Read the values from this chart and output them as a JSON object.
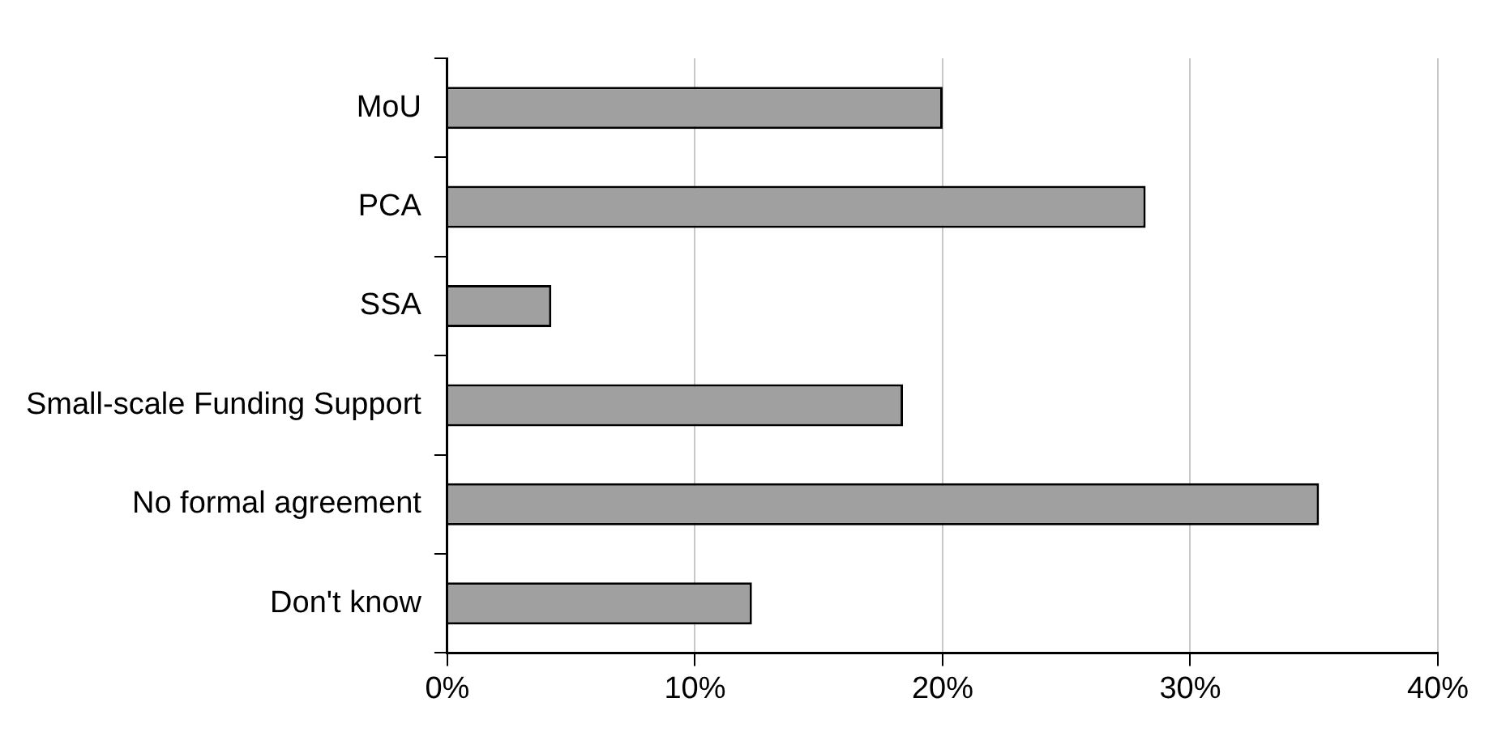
{
  "chart_data": {
    "type": "bar",
    "orientation": "horizontal",
    "categories": [
      "MoU",
      "PCA",
      "SSA",
      "Small-scale Funding Support",
      "No formal agreement",
      "Don't know"
    ],
    "values": [
      20.0,
      28.2,
      4.2,
      18.4,
      35.2,
      12.3
    ],
    "color": "#a0a0a0",
    "xlim": [
      0,
      40
    ],
    "xticks": [
      {
        "value": 0,
        "label": "0%"
      },
      {
        "value": 10,
        "label": "10%"
      },
      {
        "value": 20,
        "label": "20%"
      },
      {
        "value": 30,
        "label": "30%"
      },
      {
        "value": 40,
        "label": "40%"
      }
    ],
    "grid": "x",
    "legend": false
  }
}
